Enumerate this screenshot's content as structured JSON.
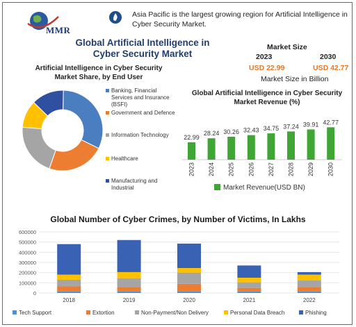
{
  "logo": {
    "text": "MMR"
  },
  "header": {
    "info_icon": "flame-icon",
    "info_text": "Asia Pacific is the largest growing region for Artificial Intelligence in Cyber Security Market."
  },
  "title": "Global Artificial Intelligence in Cyber Security Market",
  "market_size": {
    "title": "Market Size",
    "year_start": "2023",
    "year_end": "2030",
    "value_start": "USD 22.99",
    "value_end": "USD 42.77",
    "subtitle": "Market Size in Billion"
  },
  "chart_data": [
    {
      "type": "pie",
      "variant": "donut",
      "title": "Artificial Intelligence in Cyber Security Market Share, by End User",
      "categories": [
        "Banking, Financial Services and Insurance (BSFI)",
        "Government and Defence",
        "Information Technology",
        "Healthcare",
        "Manufacturing and Industrial"
      ],
      "values": [
        32,
        23,
        21,
        11,
        13
      ],
      "colors": [
        "#4a7ec1",
        "#ed7d31",
        "#a5a5a5",
        "#ffc000",
        "#2f4fa0"
      ],
      "legend": "right"
    },
    {
      "type": "bar",
      "title": "Global Artificial Intelligence in Cyber Security Market Revenue (%)",
      "categories": [
        "2023",
        "2024",
        "2025",
        "2026",
        "2027",
        "2028",
        "2029",
        "2030"
      ],
      "series": [
        {
          "name": "Market Revenue(USD BN)",
          "values": [
            22.99,
            28.24,
            30.26,
            32.43,
            34.75,
            37.24,
            39.91,
            42.77
          ]
        }
      ],
      "data_labels": [
        "22.99",
        "28.24",
        "30.26",
        "32.43",
        "34.75",
        "37.24",
        "39.91",
        "42.77"
      ],
      "color": "#3fa535",
      "legend": "bottom"
    },
    {
      "type": "bar",
      "stacked": true,
      "title": "Global Number of Cyber Crimes, by Number of Victims, In Lakhs",
      "categories": [
        "2018",
        "2019",
        "2020",
        "2021",
        "2022"
      ],
      "ylim": [
        0,
        600000
      ],
      "yticks": [
        "0",
        "100000",
        "200000",
        "300000",
        "400000",
        "500000",
        "600000"
      ],
      "series": [
        {
          "name": "Tech Support",
          "values": [
            15000,
            15000,
            15000,
            15000,
            15000
          ],
          "color": "#4a90d9"
        },
        {
          "name": "Extortion",
          "values": [
            50000,
            45000,
            75000,
            35000,
            45000
          ],
          "color": "#ed7d31"
        },
        {
          "name": "Non-Payment/Non Delivery",
          "values": [
            65000,
            85000,
            110000,
            55000,
            65000
          ],
          "color": "#a5a5a5"
        },
        {
          "name": "Personal Data Breach",
          "values": [
            50000,
            60000,
            45000,
            45000,
            55000
          ],
          "color": "#ffc000"
        },
        {
          "name": "Phishing",
          "values": [
            300000,
            315000,
            240000,
            120000,
            25000
          ],
          "color": "#3a62b4"
        }
      ],
      "legend": "bottom"
    }
  ]
}
